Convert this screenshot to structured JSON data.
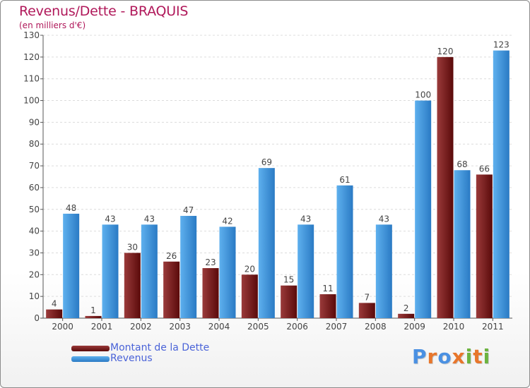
{
  "title": "Revenus/Dette - BRAQUIS",
  "subtitle": "(en milliers d'€)",
  "colors": {
    "debt_dark": "#5a0a0a",
    "debt_light": "#9a3a3a",
    "revenue_dark": "#2a7ac4",
    "revenue_light": "#5eb0ee",
    "title": "#b0185a",
    "legend_text": "#4a63d8"
  },
  "chart_data": {
    "type": "bar",
    "title": "Revenus/Dette - BRAQUIS",
    "subtitle": "(en milliers d'€)",
    "categories": [
      "2000",
      "2001",
      "2002",
      "2003",
      "2004",
      "2005",
      "2006",
      "2007",
      "2008",
      "2009",
      "2010",
      "2011"
    ],
    "series": [
      {
        "name": "Montant de la Dette",
        "values": [
          4,
          1,
          30,
          26,
          23,
          20,
          15,
          11,
          7,
          2,
          120,
          66
        ]
      },
      {
        "name": "Revenus",
        "values": [
          48,
          43,
          43,
          47,
          42,
          69,
          43,
          61,
          43,
          100,
          68,
          123
        ]
      }
    ],
    "ylim": [
      0,
      130
    ],
    "yticks": [
      0,
      10,
      20,
      30,
      40,
      50,
      60,
      70,
      80,
      90,
      100,
      110,
      120,
      130
    ],
    "grid": true,
    "legend_position": "bottom-left"
  },
  "legend": {
    "items": [
      {
        "label": "Montant de la Dette"
      },
      {
        "label": "Revenus"
      }
    ]
  },
  "logo": {
    "text": "Proxiti"
  }
}
